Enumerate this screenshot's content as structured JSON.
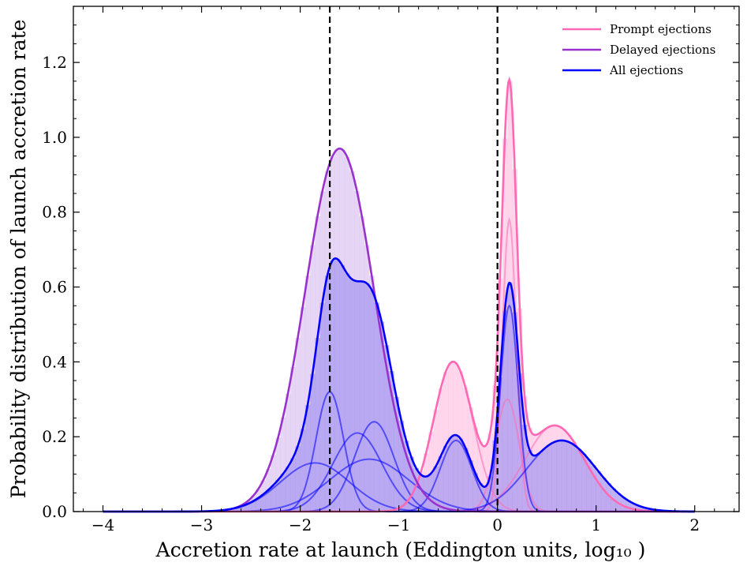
{
  "chart_data": {
    "type": "area",
    "title": "",
    "xlabel": "Accretion rate at launch (Eddington units, log₁₀ )",
    "ylabel": "Probability distribution of launch accretion rate",
    "xlim": [
      -4.3,
      2.45
    ],
    "ylim": [
      0.0,
      1.35
    ],
    "xticks": [
      -4,
      -3,
      -2,
      -1,
      0,
      1,
      2
    ],
    "xtick_labels": [
      "−4",
      "−3",
      "−2",
      "−1",
      "0",
      "1",
      "2"
    ],
    "yticks": [
      0.0,
      0.2,
      0.4,
      0.6,
      0.8,
      1.0,
      1.2
    ],
    "ytick_labels": [
      "0.0",
      "0.2",
      "0.4",
      "0.6",
      "0.8",
      "1.0",
      "1.2"
    ],
    "vertical_lines": [
      -1.7,
      0.0
    ],
    "legend": {
      "position": "top-right",
      "entries": [
        {
          "label": "Prompt ejections",
          "color": "#ff69b4"
        },
        {
          "label": "Delayed ejections",
          "color": "#9932cc"
        },
        {
          "label": "All ejections",
          "color": "#0000ff"
        }
      ]
    },
    "series": [
      {
        "name": "Prompt ejections",
        "color": "#ff69b4",
        "hist_color": "#ffc0e0",
        "components": [
          {
            "mu": -0.45,
            "sigma": 0.2,
            "amp": 0.4
          },
          {
            "mu": 0.1,
            "sigma": 0.12,
            "amp": 0.3
          },
          {
            "mu": 0.12,
            "sigma": 0.07,
            "amp": 0.78
          },
          {
            "mu": 0.58,
            "sigma": 0.3,
            "amp": 0.23
          }
        ]
      },
      {
        "name": "Delayed ejections",
        "color": "#9932cc",
        "hist_color": "#d8bff0",
        "components": [
          {
            "mu": -1.6,
            "sigma": 0.35,
            "amp": 0.97
          }
        ]
      },
      {
        "name": "All ejections",
        "color": "#0000ff",
        "hist_color": "#a99af0",
        "components": [
          {
            "mu": -1.85,
            "sigma": 0.35,
            "amp": 0.13
          },
          {
            "mu": -1.7,
            "sigma": 0.14,
            "amp": 0.32
          },
          {
            "mu": -1.42,
            "sigma": 0.25,
            "amp": 0.21
          },
          {
            "mu": -1.3,
            "sigma": 0.4,
            "amp": 0.14
          },
          {
            "mu": -1.25,
            "sigma": 0.2,
            "amp": 0.24
          },
          {
            "mu": -0.42,
            "sigma": 0.16,
            "amp": 0.19
          },
          {
            "mu": 0.12,
            "sigma": 0.09,
            "amp": 0.55
          },
          {
            "mu": 0.65,
            "sigma": 0.35,
            "amp": 0.19
          }
        ]
      }
    ]
  }
}
